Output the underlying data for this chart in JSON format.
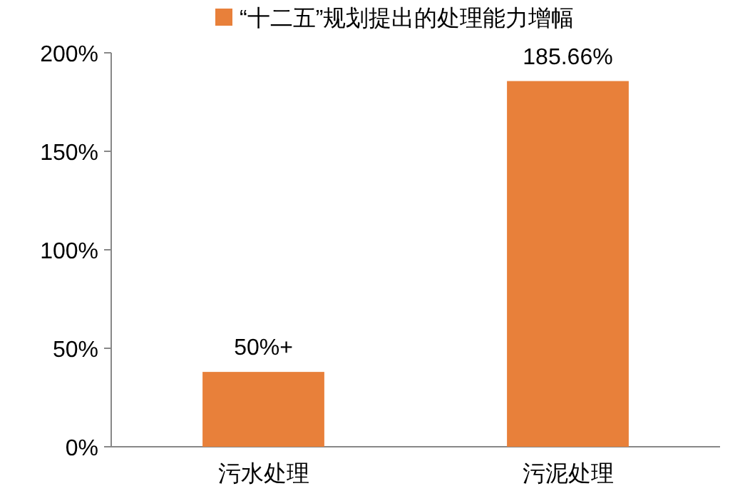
{
  "chart_data": {
    "type": "bar",
    "categories": [
      "污水处理",
      "污泥处理"
    ],
    "series": [
      {
        "name": "“十二五”规划提出的处理能力增幅",
        "color": "#e8803a",
        "values": [
          38,
          185.66
        ],
        "value_labels": [
          null,
          "185.66%"
        ]
      }
    ],
    "annotations": [
      {
        "text": "50%+",
        "x": "污水处理",
        "y": 38
      }
    ],
    "ylim": [
      0,
      200
    ],
    "yticks": [
      {
        "value": 0,
        "label": "0%"
      },
      {
        "value": 50,
        "label": "50%"
      },
      {
        "value": 100,
        "label": "100%"
      },
      {
        "value": 150,
        "label": "150%"
      },
      {
        "value": 200,
        "label": "200%"
      }
    ],
    "grid": false,
    "legend": "top"
  }
}
